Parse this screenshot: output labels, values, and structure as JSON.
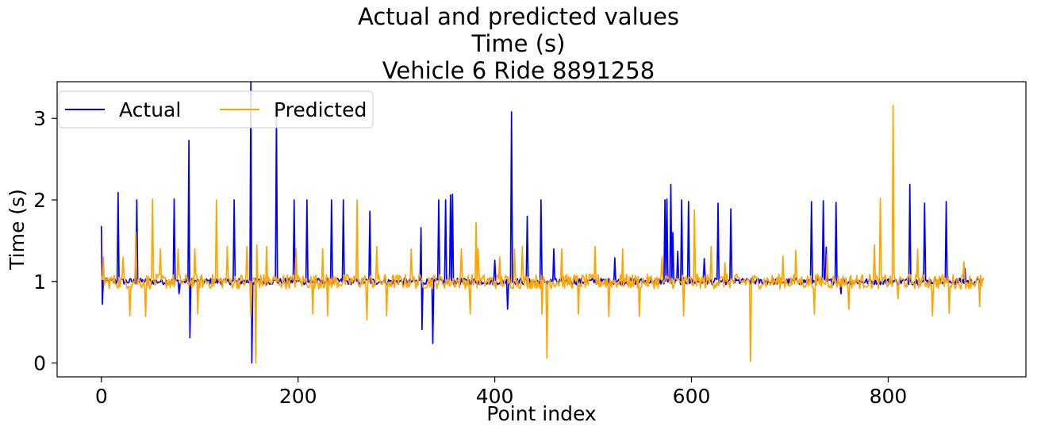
{
  "chart_data": {
    "type": "line",
    "title": [
      "Actual and predicted values",
      "Time (s)",
      "Vehicle 6 Ride 8891258"
    ],
    "xlabel": "Point index",
    "ylabel": "Time (s)",
    "xlim": [
      -45,
      940
    ],
    "ylim": [
      -0.17,
      3.45
    ],
    "xticks": [
      0,
      200,
      400,
      600,
      800
    ],
    "yticks": [
      0,
      1,
      2,
      3
    ],
    "grid": false,
    "legend": {
      "placement": "top-left",
      "columns": 2
    },
    "n_points": 898,
    "colors": {
      "actual": "#0000ff",
      "predicted": "#ffa500"
    },
    "series": [
      {
        "name": "Actual",
        "color": "#0000ff",
        "baseline": 1.0,
        "noise": 0.04,
        "events": [
          [
            0,
            1.68
          ],
          [
            1,
            0.72
          ],
          [
            17,
            2.09
          ],
          [
            36,
            2.0
          ],
          [
            74,
            2.01
          ],
          [
            79,
            0.85
          ],
          [
            89,
            2.73
          ],
          [
            90,
            0.31
          ],
          [
            135,
            2.0
          ],
          [
            152,
            3.45
          ],
          [
            153,
            0.0
          ],
          [
            178,
            3.06
          ],
          [
            196,
            2.0
          ],
          [
            209,
            2.0
          ],
          [
            234,
            2.0
          ],
          [
            246,
            2.0
          ],
          [
            273,
            1.86
          ],
          [
            325,
            1.66
          ],
          [
            326,
            0.41
          ],
          [
            337,
            0.24
          ],
          [
            343,
            2.0
          ],
          [
            350,
            2.0
          ],
          [
            355,
            2.06
          ],
          [
            357,
            2.07
          ],
          [
            400,
            1.26
          ],
          [
            413,
            0.66
          ],
          [
            417,
            3.08
          ],
          [
            433,
            1.8
          ],
          [
            447,
            2.0
          ],
          [
            460,
            1.4
          ],
          [
            522,
            1.29
          ],
          [
            573,
            2.0
          ],
          [
            575,
            2.01
          ],
          [
            579,
            2.19
          ],
          [
            581,
            1.6
          ],
          [
            586,
            1.37
          ],
          [
            590,
            2.0
          ],
          [
            597,
            1.98
          ],
          [
            613,
            1.28
          ],
          [
            627,
            1.96
          ],
          [
            640,
            1.89
          ],
          [
            722,
            1.98
          ],
          [
            734,
            1.99
          ],
          [
            737,
            1.42
          ],
          [
            747,
            1.97
          ],
          [
            752,
            0.85
          ],
          [
            822,
            2.19
          ],
          [
            837,
            1.96
          ],
          [
            859,
            1.98
          ],
          [
            878,
            1.16
          ]
        ]
      },
      {
        "name": "Predicted",
        "color": "#ffa500",
        "baseline": 1.0,
        "noise": 0.09,
        "events": [
          [
            2,
            1.3
          ],
          [
            22,
            1.3
          ],
          [
            29,
            0.58
          ],
          [
            35,
            1.6
          ],
          [
            45,
            0.57
          ],
          [
            52,
            2.01
          ],
          [
            60,
            1.4
          ],
          [
            78,
            1.4
          ],
          [
            95,
            1.4
          ],
          [
            98,
            0.6
          ],
          [
            117,
            2.0
          ],
          [
            128,
            1.43
          ],
          [
            148,
            1.43
          ],
          [
            152,
            0.57
          ],
          [
            157,
            0.0
          ],
          [
            158,
            1.45
          ],
          [
            168,
            1.43
          ],
          [
            198,
            1.4
          ],
          [
            215,
            0.6
          ],
          [
            225,
            1.4
          ],
          [
            230,
            0.58
          ],
          [
            260,
            2.0
          ],
          [
            270,
            0.53
          ],
          [
            280,
            1.43
          ],
          [
            290,
            0.58
          ],
          [
            315,
            1.4
          ],
          [
            366,
            1.4
          ],
          [
            375,
            0.6
          ],
          [
            381,
            1.72
          ],
          [
            383,
            1.4
          ],
          [
            405,
            1.3
          ],
          [
            420,
            1.4
          ],
          [
            428,
            1.43
          ],
          [
            448,
            0.6
          ],
          [
            453,
            0.06
          ],
          [
            468,
            1.4
          ],
          [
            485,
            0.6
          ],
          [
            502,
            1.43
          ],
          [
            516,
            0.57
          ],
          [
            530,
            1.4
          ],
          [
            547,
            0.57
          ],
          [
            570,
            1.3
          ],
          [
            592,
            0.58
          ],
          [
            603,
            1.88
          ],
          [
            620,
            1.43
          ],
          [
            634,
            1.23
          ],
          [
            660,
            0.02
          ],
          [
            693,
            1.31
          ],
          [
            706,
            1.38
          ],
          [
            725,
            0.6
          ],
          [
            738,
            1.34
          ],
          [
            760,
            0.66
          ],
          [
            786,
            1.45
          ],
          [
            792,
            2.02
          ],
          [
            805,
            3.16
          ],
          [
            810,
            0.79
          ],
          [
            830,
            1.4
          ],
          [
            845,
            0.58
          ],
          [
            862,
            0.61
          ],
          [
            877,
            1.24
          ],
          [
            893,
            0.69
          ]
        ]
      }
    ]
  }
}
